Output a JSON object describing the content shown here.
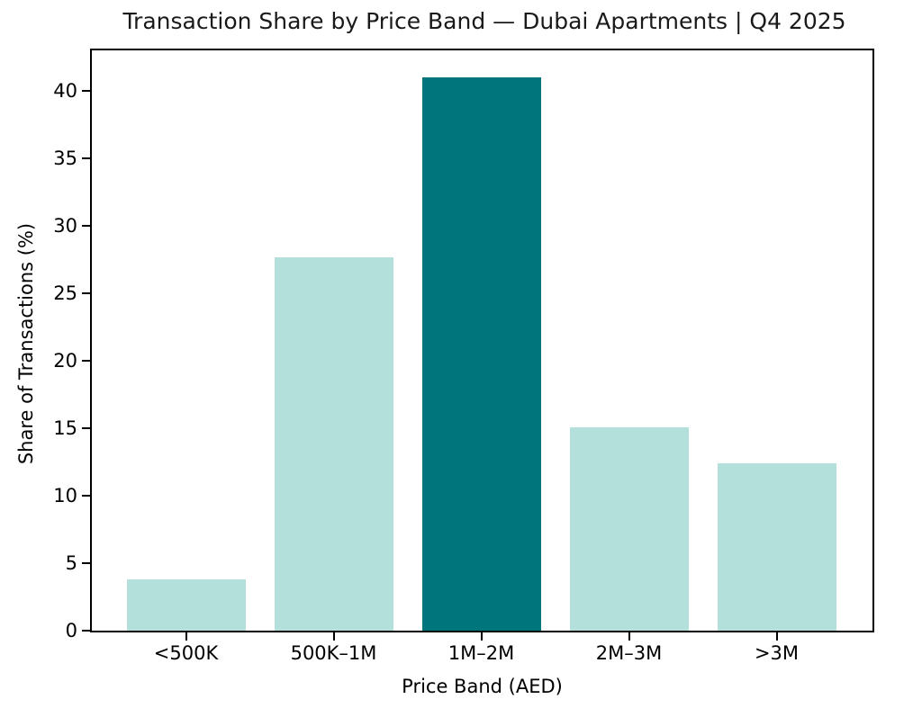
{
  "chart_data": {
    "type": "bar",
    "title": "Transaction Share by Price Band — Dubai Apartments | Q4 2025",
    "xlabel": "Price Band (AED)",
    "ylabel": "Share of Transactions (%)",
    "categories": [
      "<500K",
      "500K–1M",
      "1M–2M",
      "2M–3M",
      ">3M"
    ],
    "values": [
      3.8,
      27.7,
      41.0,
      15.1,
      12.4
    ],
    "yticks": [
      0,
      5,
      10,
      15,
      20,
      25,
      30,
      35,
      40
    ],
    "ylim": [
      0,
      43
    ],
    "grid": false,
    "legend_position": "none",
    "bar_color": "#b4e0db",
    "highlight_color": "#00767c",
    "highlight_index": 2,
    "highlight_category": "1M–2M"
  }
}
